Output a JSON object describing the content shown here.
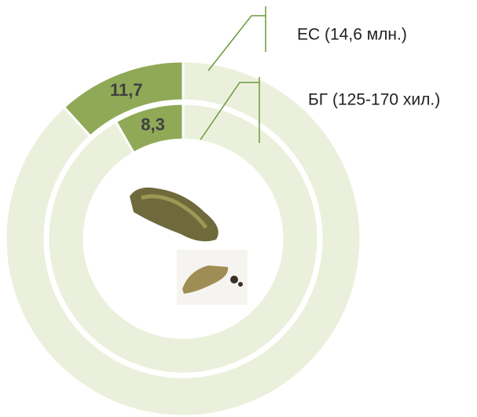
{
  "chart_data": {
    "type": "donut",
    "series": [
      {
        "name": "ЕС (14,6 млн.)",
        "colors": [
          "#8fa957",
          "#ebf0dc"
        ],
        "values": [
          11.7,
          88.3
        ],
        "value_labels": [
          "11,7",
          null
        ]
      },
      {
        "name": "БГ (125-170 хил.)",
        "colors": [
          "#8fa957",
          "#ebf0dc"
        ],
        "values": [
          8.3,
          91.7
        ],
        "value_labels": [
          "8,3",
          null
        ]
      }
    ]
  }
}
